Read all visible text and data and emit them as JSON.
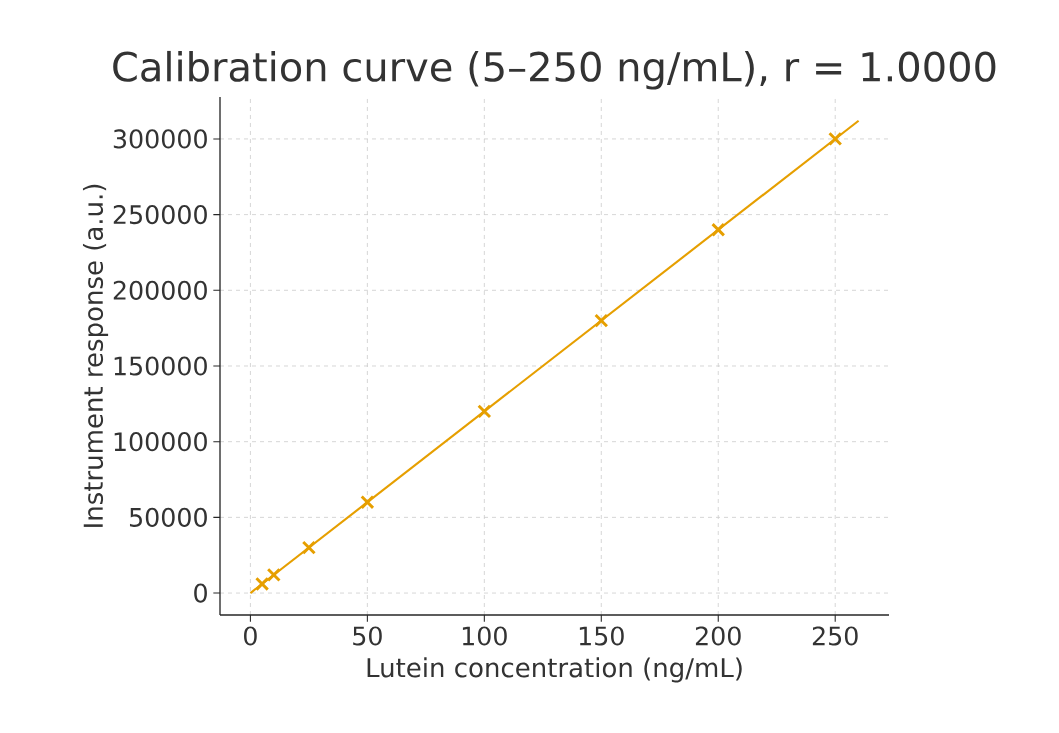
{
  "chart_data": {
    "type": "scatter",
    "title": "Calibration curve (5–250 ng/mL), r = 1.0000",
    "xlabel": "Lutein concentration (ng/mL)",
    "ylabel": "Instrument response (a.u.)",
    "x": [
      5,
      10,
      25,
      50,
      100,
      150,
      200,
      250
    ],
    "series": [
      {
        "color": "#e69f00",
        "marker": "cross",
        "values": [
          6000,
          12000,
          30000,
          60000,
          120000,
          180000,
          240000,
          300000
        ]
      },
      {
        "type": "line",
        "color": "#e69f00",
        "marker": "none",
        "line_style": "solid",
        "x": [
          0,
          260
        ],
        "values": [
          0,
          312000
        ]
      }
    ],
    "xlim": [
      -13,
      273
    ],
    "ylim": [
      -14500,
      327700
    ],
    "xticks": [
      0,
      50,
      100,
      150,
      200,
      250
    ],
    "yticks": [
      0,
      50000,
      100000,
      150000,
      200000,
      250000,
      300000
    ],
    "grid": true
  }
}
